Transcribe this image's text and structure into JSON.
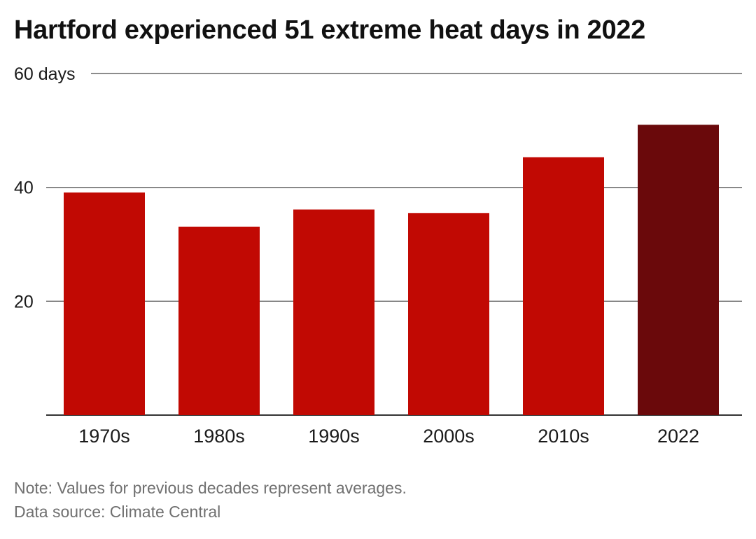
{
  "chart_data": {
    "type": "bar",
    "title": "Hartford experienced 51 extreme heat days in 2022",
    "categories": [
      "1970s",
      "1980s",
      "1990s",
      "2000s",
      "2010s",
      "2022"
    ],
    "values": [
      39.1,
      33.1,
      36.1,
      35.5,
      45.3,
      51
    ],
    "ylim": [
      0,
      60
    ],
    "yticks": [
      {
        "value": 20,
        "label": "20"
      },
      {
        "value": 40,
        "label": "40"
      },
      {
        "value": 60,
        "label": "60 days"
      }
    ],
    "grid": true,
    "colors": {
      "default_bar": "#c10903",
      "highlight_bar": "#6a090b",
      "gridline": "#666666",
      "axis": "#333333"
    },
    "highlight_category": "2022"
  },
  "notes": {
    "note": "Note: Values for previous decades represent averages.",
    "source": "Data source: Climate Central"
  }
}
